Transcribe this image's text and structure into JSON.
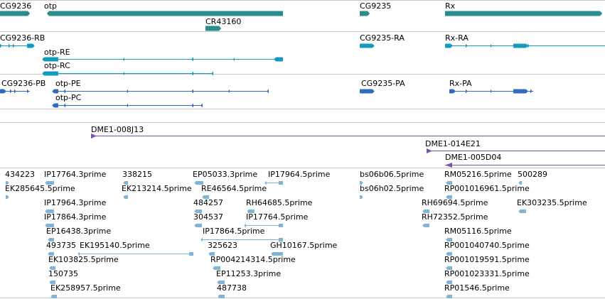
{
  "colors": {
    "gene": "#2a8c8c",
    "transcript": "#129bbd",
    "protein": "#2f6bc2",
    "clone": "#7b55a8",
    "est": "#7fb3d8",
    "divider": "#c8c8c8"
  },
  "tracks": [
    {
      "name": "genes",
      "color": "gene",
      "items": [
        {
          "label": "CG9236",
          "strand": "+",
          "style": "bar"
        },
        {
          "label": "otp",
          "strand": "-",
          "style": "bar"
        },
        {
          "label": "CR43160",
          "strand": "+",
          "style": "bar"
        },
        {
          "label": "CG9235",
          "strand": "+",
          "style": "bar"
        },
        {
          "label": "Rx",
          "strand": "+",
          "style": "bar"
        }
      ]
    },
    {
      "name": "transcripts",
      "color": "transcript",
      "items": [
        {
          "label": "CG9236-RB",
          "strand": "+",
          "style": "gene"
        },
        {
          "label": "otp-RE",
          "strand": "-",
          "style": "gene"
        },
        {
          "label": "otp-RC",
          "strand": "-",
          "style": "gene"
        },
        {
          "label": "CG9235-RA",
          "strand": "+",
          "style": "gene"
        },
        {
          "label": "Rx-RA",
          "strand": "+",
          "style": "gene"
        }
      ]
    },
    {
      "name": "proteins",
      "color": "protein",
      "items": [
        {
          "label": "CG9236-PB",
          "strand": "+",
          "style": "gene"
        },
        {
          "label": "otp-PE",
          "strand": "-",
          "style": "gene"
        },
        {
          "label": "otp-PC",
          "strand": "-",
          "style": "gene"
        },
        {
          "label": "CG9235-PA",
          "strand": "+",
          "style": "gene"
        },
        {
          "label": "Rx-PA",
          "strand": "+",
          "style": "gene"
        }
      ]
    },
    {
      "name": "clones",
      "color": "clone",
      "items": [
        {
          "label": "DME1-008J13",
          "strand": "+",
          "style": "line"
        },
        {
          "label": "DME1-014E21",
          "strand": "+",
          "style": "line"
        },
        {
          "label": "DME1-005D04",
          "strand": "-",
          "style": "line"
        }
      ]
    },
    {
      "name": "ests",
      "color": "est",
      "items": [
        {
          "label": "434223",
          "strand": "+",
          "style": "bar"
        },
        {
          "label": "IP17764.3prime",
          "strand": "-",
          "style": "bar"
        },
        {
          "label": "338215",
          "strand": "-",
          "style": "bar"
        },
        {
          "label": "EP05033.3prime",
          "strand": "-",
          "style": "bar"
        },
        {
          "label": "IP17964.5prime",
          "strand": "-",
          "style": "split"
        },
        {
          "label": "bs06b06.5prime",
          "strand": "+",
          "style": "bar"
        },
        {
          "label": "RM05216.5prime",
          "strand": "-",
          "style": "bar"
        },
        {
          "label": "500289",
          "strand": "-",
          "style": "bar"
        },
        {
          "label": "EK285645.5prime",
          "strand": "+",
          "style": "bar"
        },
        {
          "label": "EK213214.5prime",
          "strand": "-",
          "style": "bar"
        },
        {
          "label": "RE46564.5prime",
          "strand": "-",
          "style": "bar"
        },
        {
          "label": "bs06h02.5prime",
          "strand": "+",
          "style": "bar"
        },
        {
          "label": "RP001016961.5prime",
          "strand": "-",
          "style": "bar"
        },
        {
          "label": "IP17964.3prime",
          "strand": "-",
          "style": "bar"
        },
        {
          "label": "484257",
          "strand": "-",
          "style": "bar"
        },
        {
          "label": "RH64685.5prime",
          "strand": "-",
          "style": "bar"
        },
        {
          "label": "RH69694.5prime",
          "strand": "-",
          "style": "bar"
        },
        {
          "label": "EK303235.5prime",
          "strand": "-",
          "style": "bar"
        },
        {
          "label": "IP17864.3prime",
          "strand": "-",
          "style": "bar"
        },
        {
          "label": "304537",
          "strand": "-",
          "style": "bar"
        },
        {
          "label": "IP17764.5prime",
          "strand": "-",
          "style": "split"
        },
        {
          "label": "RH72352.5prime",
          "strand": "-",
          "style": "bar"
        },
        {
          "label": "EP16438.3prime",
          "strand": "-",
          "style": "bar"
        },
        {
          "label": "IP17864.5prime",
          "strand": "-",
          "style": "split"
        },
        {
          "label": "RM05116.5prime",
          "strand": "-",
          "style": "bar"
        },
        {
          "label": "493735",
          "strand": "-",
          "style": "bar"
        },
        {
          "label": "EK195140.5prime",
          "strand": "-",
          "style": "line"
        },
        {
          "label": "325623",
          "strand": "-",
          "style": "bar"
        },
        {
          "label": "GH10167.5prime",
          "strand": "-",
          "style": "bar"
        },
        {
          "label": "RP001040740.5prime",
          "strand": "-",
          "style": "bar"
        },
        {
          "label": "EK103825.5prime",
          "strand": "-",
          "style": "bar"
        },
        {
          "label": "RP004214314.5prime",
          "strand": "-",
          "style": "bar"
        },
        {
          "label": "RP001019591.5prime",
          "strand": "-",
          "style": "bar"
        },
        {
          "label": "150735",
          "strand": "-",
          "style": "bar"
        },
        {
          "label": "EP11253.3prime",
          "strand": "-",
          "style": "bar"
        },
        {
          "label": "RP001023331.5prime",
          "strand": "-",
          "style": "bar"
        },
        {
          "label": "EK258957.5prime",
          "strand": "-",
          "style": "bar"
        },
        {
          "label": "487738",
          "strand": "-",
          "style": "bar"
        },
        {
          "label": "RP01546.5prime",
          "strand": "-",
          "style": "bar"
        }
      ]
    }
  ]
}
